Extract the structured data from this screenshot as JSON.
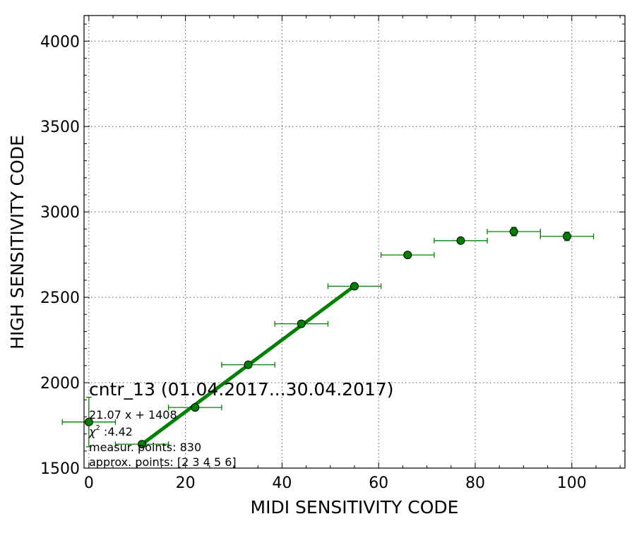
{
  "chart_data": {
    "type": "scatter",
    "xlabel": "MIDI SENSITIVITY CODE",
    "ylabel": "HIGH SENSITIVITY CODE",
    "xlim": [
      -1,
      111
    ],
    "ylim": [
      1500,
      4150
    ],
    "xticks": [
      0,
      20,
      40,
      60,
      80,
      100
    ],
    "yticks": [
      1500,
      2000,
      2500,
      3000,
      3500,
      4000
    ],
    "grid": true,
    "grid_style": "dotted",
    "color": "#008000",
    "marker": "circle",
    "points": [
      {
        "x": 0,
        "y": 1770,
        "xerr": 5.5,
        "yerr": 145
      },
      {
        "x": 11,
        "y": 1640,
        "xerr": 5.5,
        "yerr": 8
      },
      {
        "x": 22,
        "y": 1855,
        "xerr": 5.5,
        "yerr": 8
      },
      {
        "x": 33,
        "y": 2105,
        "xerr": 5.5,
        "yerr": 8
      },
      {
        "x": 44,
        "y": 2345,
        "xerr": 5.5,
        "yerr": 8
      },
      {
        "x": 55,
        "y": 2565,
        "xerr": 5.5,
        "yerr": 8
      },
      {
        "x": 66,
        "y": 2748,
        "xerr": 5.5,
        "yerr": 8
      },
      {
        "x": 77,
        "y": 2832,
        "xerr": 5.5,
        "yerr": 8
      },
      {
        "x": 88,
        "y": 2885,
        "xerr": 5.5,
        "yerr": 25
      },
      {
        "x": 99,
        "y": 2857,
        "xerr": 5.5,
        "yerr": 25
      }
    ],
    "fit_line": {
      "slope": 21.07,
      "intercept": 1408,
      "x_from": 11,
      "x_to": 55
    },
    "annotation": {
      "title": "cntr_13 (01.04.2017...30.04.2017)",
      "formula": "21.07 x + 1408",
      "chi2_symbol": "χ",
      "chi2_sup": "2",
      "chi2_value": " :4.42",
      "measured": "measur. points: 830",
      "approx": "approx. points: [2 3 4 5 6]"
    }
  }
}
